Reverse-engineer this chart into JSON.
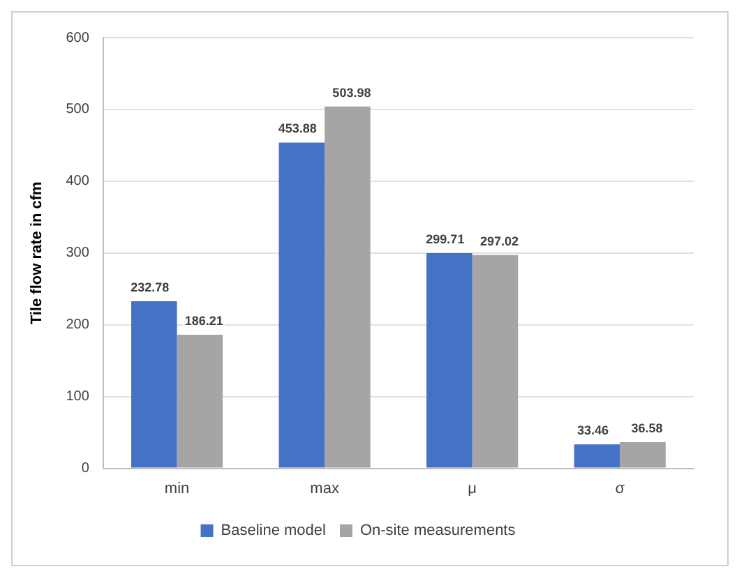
{
  "chart_data": {
    "type": "bar",
    "ylabel": "Tile flow rate in cfm",
    "categories": [
      "min",
      "max",
      "μ",
      "σ"
    ],
    "series": [
      {
        "name": "Baseline model",
        "color": "#4472c4",
        "values": [
          232.78,
          453.88,
          299.71,
          33.46
        ]
      },
      {
        "name": "On-site measurements",
        "color": "#a5a5a5",
        "values": [
          186.21,
          503.98,
          297.02,
          36.58
        ]
      }
    ],
    "ylim": [
      0,
      600
    ],
    "yticks": [
      0,
      100,
      200,
      300,
      400,
      500,
      600
    ],
    "grid": "y",
    "legend": "bottom",
    "data_labels": true
  }
}
